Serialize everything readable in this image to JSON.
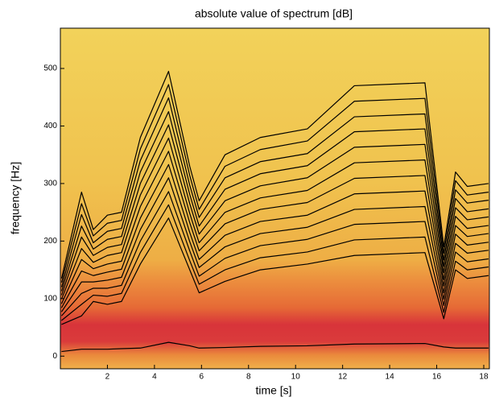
{
  "chart_data": {
    "type": "line",
    "title": "absolute value of spectrum [dB]",
    "x_label": "time [s]",
    "y_label": "frequency [Hz]",
    "xlim": [
      0,
      18.24
    ],
    "ylim": [
      -22,
      570
    ],
    "xticks": [
      2,
      4,
      6,
      8,
      10,
      12,
      14,
      16,
      18
    ],
    "yticks": [
      0,
      100,
      200,
      300,
      400,
      500
    ],
    "line_color": "#000000",
    "x": [
      0.05,
      0.9,
      1.4,
      2.0,
      2.6,
      3.4,
      4.6,
      5.5,
      5.9,
      7.0,
      8.5,
      10.5,
      12.5,
      15.5,
      16.3,
      16.8,
      17.3,
      18.2
    ],
    "series": [
      {
        "values": [
          8,
          12,
          12,
          12,
          13,
          14,
          24,
          18,
          14,
          15,
          17,
          18,
          21,
          22,
          16,
          14,
          14,
          14
        ]
      },
      {
        "values": [
          55,
          70,
          95,
          90,
          95,
          160,
          240,
          150,
          110,
          130,
          150,
          160,
          175,
          180,
          65,
          150,
          135,
          140
        ]
      },
      {
        "values": [
          62,
          90,
          106,
          104,
          109,
          180,
          263,
          166,
          125,
          150,
          171,
          181,
          202,
          207,
          76,
          165,
          150,
          155
        ]
      },
      {
        "values": [
          70,
          109,
          118,
          118,
          123,
          200,
          286,
          183,
          139,
          170,
          192,
          203,
          229,
          234,
          88,
          181,
          164,
          169
        ]
      },
      {
        "values": [
          77,
          129,
          129,
          132,
          137,
          220,
          310,
          199,
          154,
          190,
          213,
          224,
          255,
          260,
          99,
          196,
          179,
          184
        ]
      },
      {
        "values": [
          84,
          148,
          140,
          146,
          151,
          240,
          333,
          215,
          168,
          210,
          234,
          245,
          282,
          287,
          110,
          212,
          193,
          198
        ]
      },
      {
        "values": [
          91,
          168,
          152,
          160,
          165,
          260,
          356,
          232,
          183,
          230,
          255,
          267,
          309,
          314,
          122,
          227,
          208,
          213
        ]
      },
      {
        "values": [
          99,
          187,
          163,
          175,
          180,
          280,
          379,
          248,
          197,
          250,
          275,
          288,
          336,
          341,
          133,
          243,
          222,
          227
        ]
      },
      {
        "values": [
          106,
          207,
          175,
          189,
          194,
          300,
          402,
          265,
          212,
          270,
          296,
          310,
          363,
          368,
          145,
          258,
          237,
          242
        ]
      },
      {
        "values": [
          113,
          226,
          186,
          203,
          208,
          320,
          425,
          281,
          226,
          290,
          317,
          331,
          390,
          395,
          156,
          274,
          251,
          256
        ]
      },
      {
        "values": [
          120,
          246,
          197,
          217,
          222,
          340,
          449,
          297,
          241,
          310,
          338,
          352,
          416,
          421,
          167,
          289,
          266,
          271
        ]
      },
      {
        "values": [
          128,
          265,
          209,
          231,
          236,
          360,
          472,
          314,
          255,
          330,
          359,
          374,
          443,
          448,
          179,
          305,
          280,
          285
        ]
      },
      {
        "values": [
          135,
          285,
          220,
          245,
          250,
          380,
          495,
          330,
          270,
          350,
          380,
          395,
          470,
          475,
          190,
          320,
          295,
          300
        ]
      }
    ]
  }
}
